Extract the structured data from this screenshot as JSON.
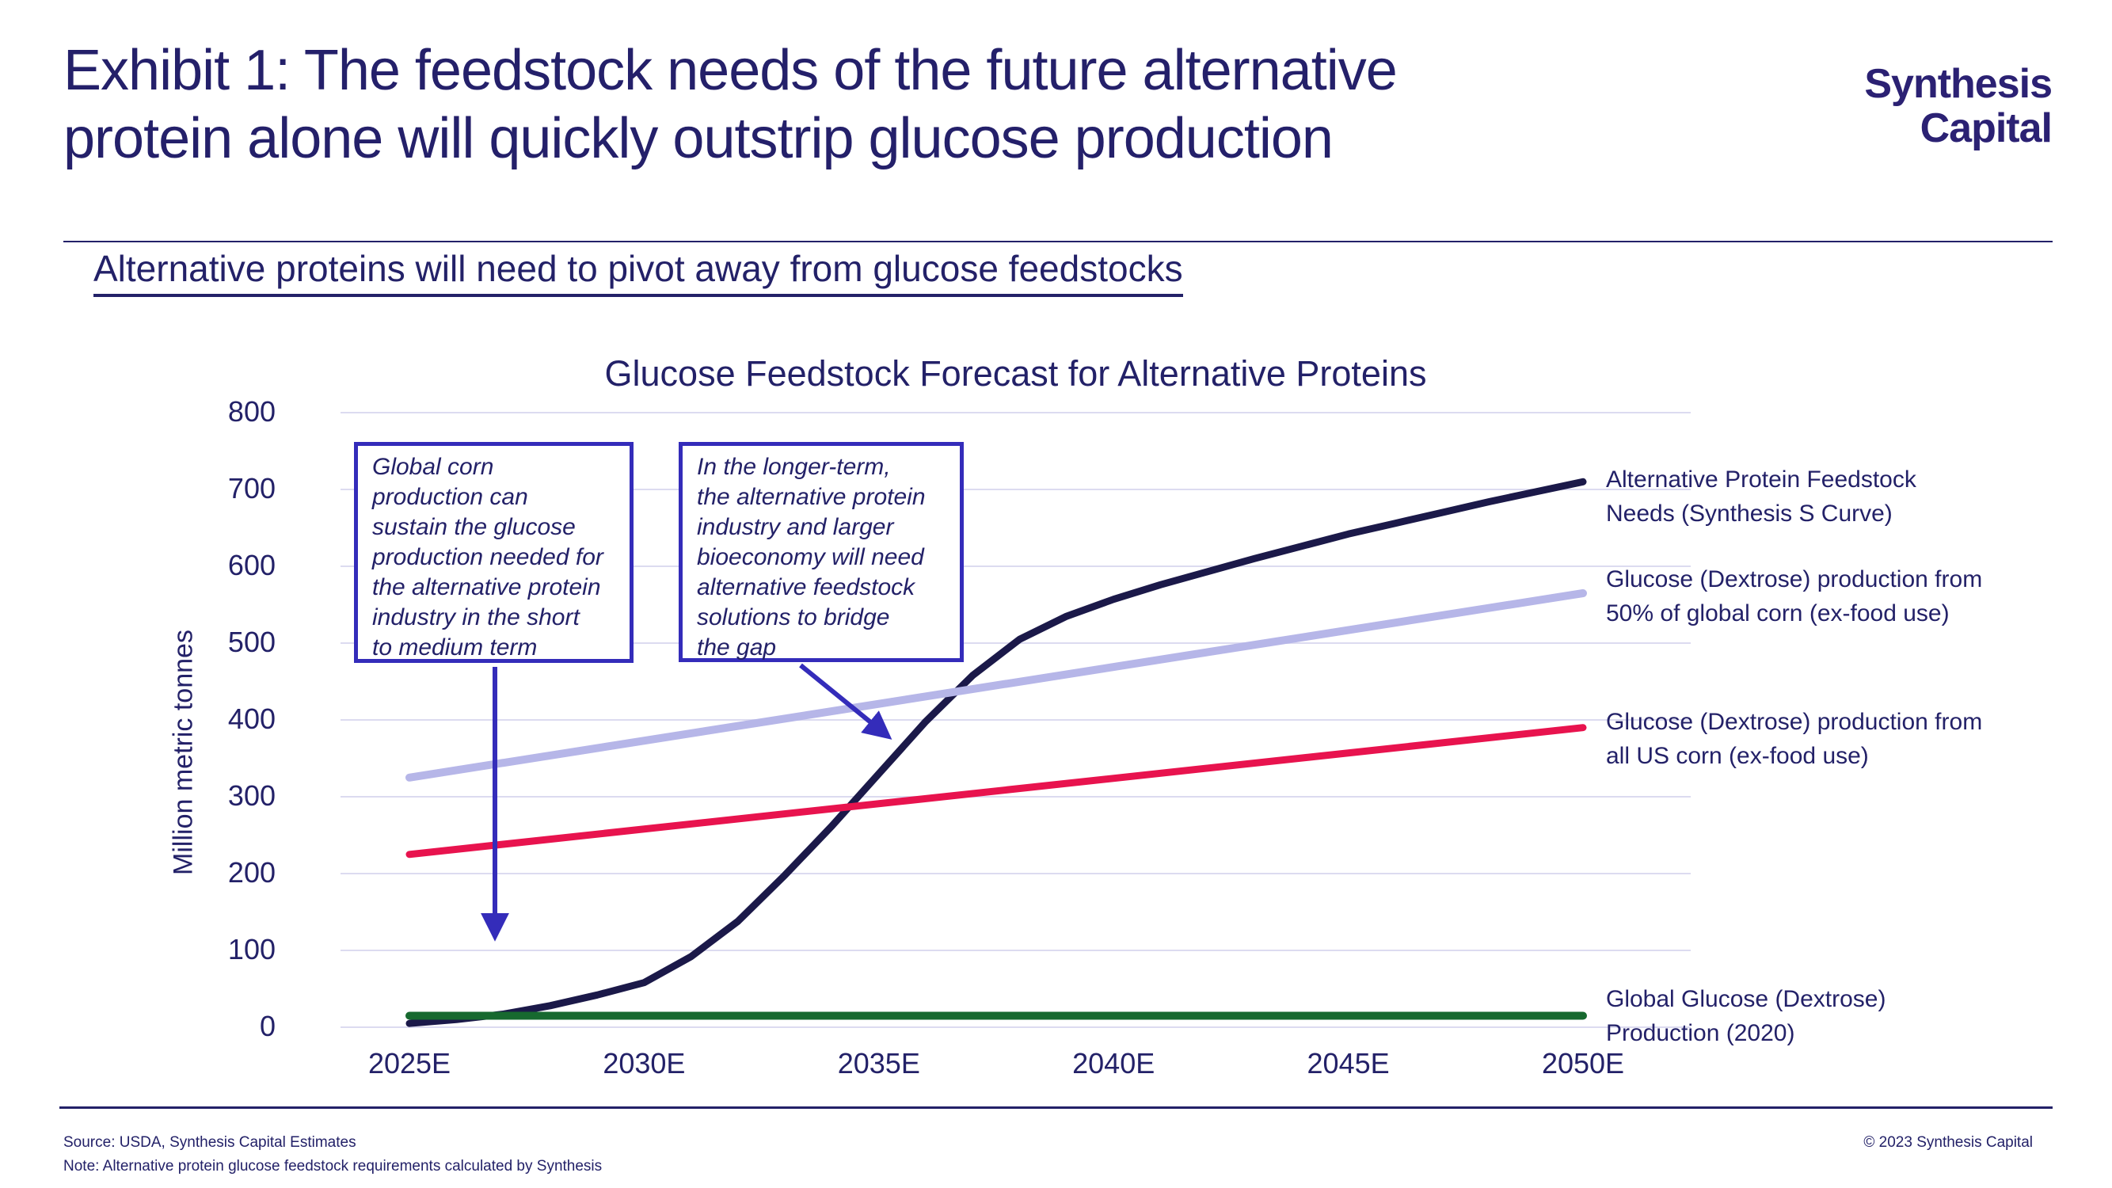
{
  "page": {
    "title_line1": "Exhibit 1: The feedstock needs of the future alternative",
    "title_line2": "protein alone will quickly outstrip glucose production",
    "subtitle": "Alternative proteins will need to pivot away from glucose feedstocks",
    "logo_line1": "Synthesis",
    "logo_line2": "Capital",
    "footer_source": "Source: USDA, Synthesis Capital Estimates",
    "footer_note": "Note: Alternative protein glucose feedstock requirements calculated by Synthesis",
    "footer_copyright": "© 2023 Synthesis Capital"
  },
  "colors": {
    "navy_text": "#232168",
    "s_curve": "#1b1949",
    "corn50_purple": "#b6b6e8",
    "us_corn_red": "#e8134e",
    "global_glucose_green": "#17692f",
    "gridline": "#dcdbf0",
    "annotation_indigo": "#342cba"
  },
  "chart_data": {
    "type": "line",
    "title": "Glucose Feedstock Forecast for Alternative Proteins",
    "xlabel": "",
    "ylabel": "Million metric tonnes",
    "ylim": [
      0,
      800
    ],
    "yticks": [
      0,
      100,
      200,
      300,
      400,
      500,
      600,
      700,
      800
    ],
    "x_categories": [
      "2025E",
      "2030E",
      "2035E",
      "2040E",
      "2045E",
      "2050E"
    ],
    "grid": "horizontal gridlines on",
    "legend_position": "right",
    "units": "Million metric tonnes",
    "series": [
      {
        "name": "Alternative Protein Feedstock Needs (Synthesis S Curve)",
        "color": "#1b1949",
        "stroke_width": 9,
        "x": [
          2025,
          2026,
          2027,
          2028,
          2029,
          2030,
          2031,
          2032,
          2033,
          2034,
          2035,
          2036,
          2037,
          2038,
          2039,
          2040,
          2041,
          2042,
          2043,
          2044,
          2045,
          2046,
          2047,
          2048,
          2049,
          2050
        ],
        "values": [
          5,
          10,
          17,
          28,
          42,
          58,
          92,
          138,
          198,
          262,
          330,
          398,
          458,
          505,
          535,
          557,
          576,
          593,
          610,
          626,
          642,
          656,
          670,
          684,
          697,
          710
        ]
      },
      {
        "name": "Glucose (Dextrose) production from 50% of global corn (ex-food use)",
        "color": "#b6b6e8",
        "stroke_width": 10,
        "x": [
          2025,
          2050
        ],
        "values": [
          325,
          565
        ]
      },
      {
        "name": "Glucose (Dextrose) production from all US corn (ex-food use)",
        "color": "#e8134e",
        "stroke_width": 9,
        "x": [
          2025,
          2050
        ],
        "values": [
          225,
          390
        ]
      },
      {
        "name": "Global Glucose (Dextrose) Production (2020)",
        "color": "#17692f",
        "stroke_width": 10,
        "x": [
          2025,
          2050
        ],
        "values": [
          15,
          15
        ]
      }
    ],
    "annotations": [
      {
        "text": "Global corn production can sustain the glucose production needed for the alternative protein industry in the short to medium term",
        "lines": [
          "Global corn",
          "production can",
          "sustain the glucose",
          "production needed for",
          "the alternative protein",
          "industry in the short",
          "to medium term"
        ],
        "arrow": "points straight down to the S curve near the zero line around 2026-2027"
      },
      {
        "text": "In the longer-term, the alternative protein industry and larger bioeconomy will need alternative feedstock solutions to bridge the gap",
        "lines": [
          "In the longer-term,",
          "the alternative protein",
          "industry and larger",
          "bioeconomy will need",
          "alternative feedstock",
          "solutions to bridge",
          "the gap"
        ],
        "arrow": "points diagonally down-right to the steep section of the S curve around 2035"
      }
    ]
  },
  "legend": [
    {
      "lines": [
        "Alternative Protein Feedstock",
        "Needs (Synthesis S Curve)"
      ]
    },
    {
      "lines": [
        "Glucose (Dextrose) production from",
        "50% of global corn (ex-food use)"
      ]
    },
    {
      "lines": [
        "Glucose (Dextrose) production from",
        "all US corn (ex-food use)"
      ]
    },
    {
      "lines": [
        "Global Glucose (Dextrose)",
        "Production (2020)"
      ]
    }
  ]
}
